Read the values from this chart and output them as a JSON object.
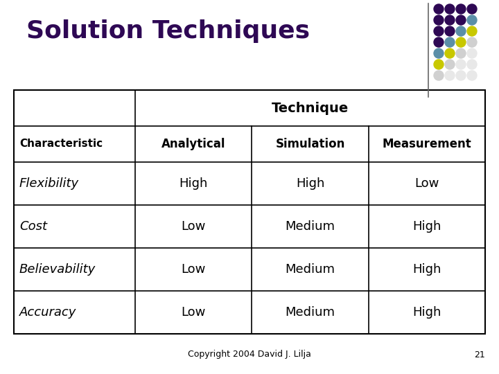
{
  "title": "Solution Techniques",
  "title_color": "#2E0854",
  "title_fontsize": 26,
  "background_color": "#ffffff",
  "table_header_row1_text": "Technique",
  "table_header_row2": [
    "Characteristic",
    "Analytical",
    "Simulation",
    "Measurement"
  ],
  "table_data": [
    [
      "Flexibility",
      "High",
      "High",
      "Low"
    ],
    [
      "Cost",
      "Low",
      "Medium",
      "High"
    ],
    [
      "Believability",
      "Low",
      "Medium",
      "High"
    ],
    [
      "Accuracy",
      "Low",
      "Medium",
      "High"
    ]
  ],
  "footer_text": "Copyright 2004 David J. Lilja",
  "footer_page": "21",
  "dot_grid": [
    [
      "#2E0854",
      "#2E0854",
      "#2E0854",
      "#2E0854"
    ],
    [
      "#2E0854",
      "#2E0854",
      "#2E0854",
      "#5F9EA0"
    ],
    [
      "#2E0854",
      "#2E0854",
      "#5F9EA0",
      "#D4CC00"
    ],
    [
      "#2E0854",
      "#5F9EA0",
      "#D4CC00",
      "#D8D8D8"
    ],
    [
      "#5F9EA0",
      "#D4CC00",
      "#D8D8D8",
      "#ECECEC"
    ],
    [
      "#D4CC00",
      "#D8D8D8",
      "#ECECEC",
      "#ECECEC"
    ],
    [
      "#D8D8D8",
      "#ECECEC",
      "#ECECEC",
      "#ECECEC"
    ]
  ]
}
